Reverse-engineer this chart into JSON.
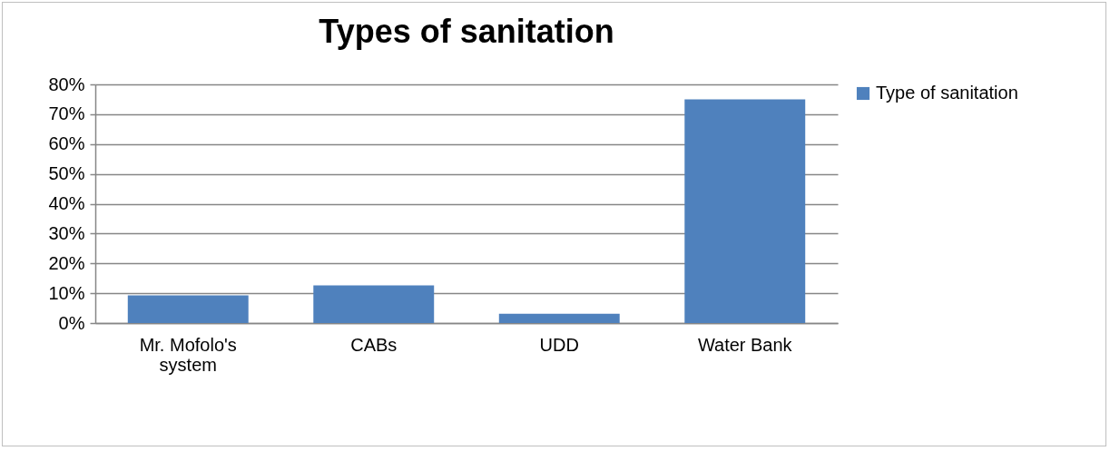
{
  "chart_data": {
    "type": "bar",
    "title": "Types of sanitation",
    "categories": [
      "Mr. Mofolo's system",
      "CABs",
      "UDD",
      "Water Bank"
    ],
    "series": [
      {
        "name": "Type of sanitation",
        "color": "#4f81bd",
        "values": [
          9.3,
          12.6,
          3.1,
          75
        ]
      }
    ],
    "ylim": [
      0,
      80
    ],
    "yticks": [
      {
        "value": 0,
        "label": "0%"
      },
      {
        "value": 10,
        "label": "10%"
      },
      {
        "value": 20,
        "label": "20%"
      },
      {
        "value": 30,
        "label": "30%"
      },
      {
        "value": 40,
        "label": "40%"
      },
      {
        "value": 50,
        "label": "50%"
      },
      {
        "value": 60,
        "label": "60%"
      },
      {
        "value": 70,
        "label": "70%"
      },
      {
        "value": 80,
        "label": "80%"
      }
    ],
    "grid": "y",
    "legend": "right"
  }
}
